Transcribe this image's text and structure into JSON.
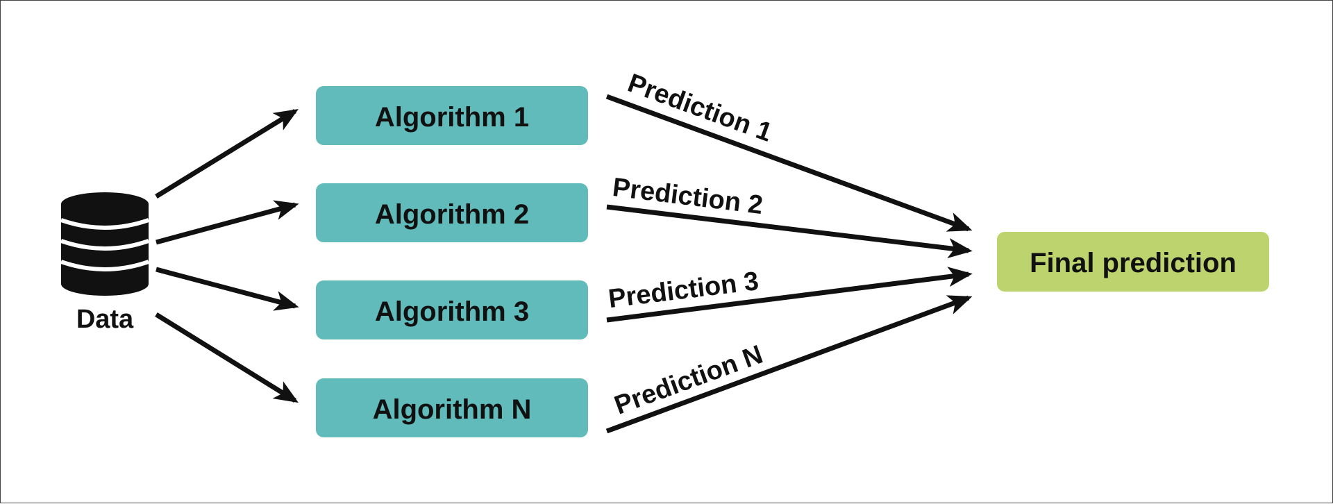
{
  "data_source": {
    "label": "Data",
    "icon": "database-icon"
  },
  "algorithms": [
    {
      "label": "Algorithm 1"
    },
    {
      "label": "Algorithm 2"
    },
    {
      "label": "Algorithm 3"
    },
    {
      "label": "Algorithm N"
    }
  ],
  "predictions": [
    {
      "label": "Prediction 1"
    },
    {
      "label": "Prediction 2"
    },
    {
      "label": "Prediction 3"
    },
    {
      "label": "Prediction N"
    }
  ],
  "final": {
    "label": "Final prediction"
  },
  "colors": {
    "algorithm_fill": "#61BBBB",
    "final_fill": "#BCD36E",
    "ink": "#111111"
  }
}
